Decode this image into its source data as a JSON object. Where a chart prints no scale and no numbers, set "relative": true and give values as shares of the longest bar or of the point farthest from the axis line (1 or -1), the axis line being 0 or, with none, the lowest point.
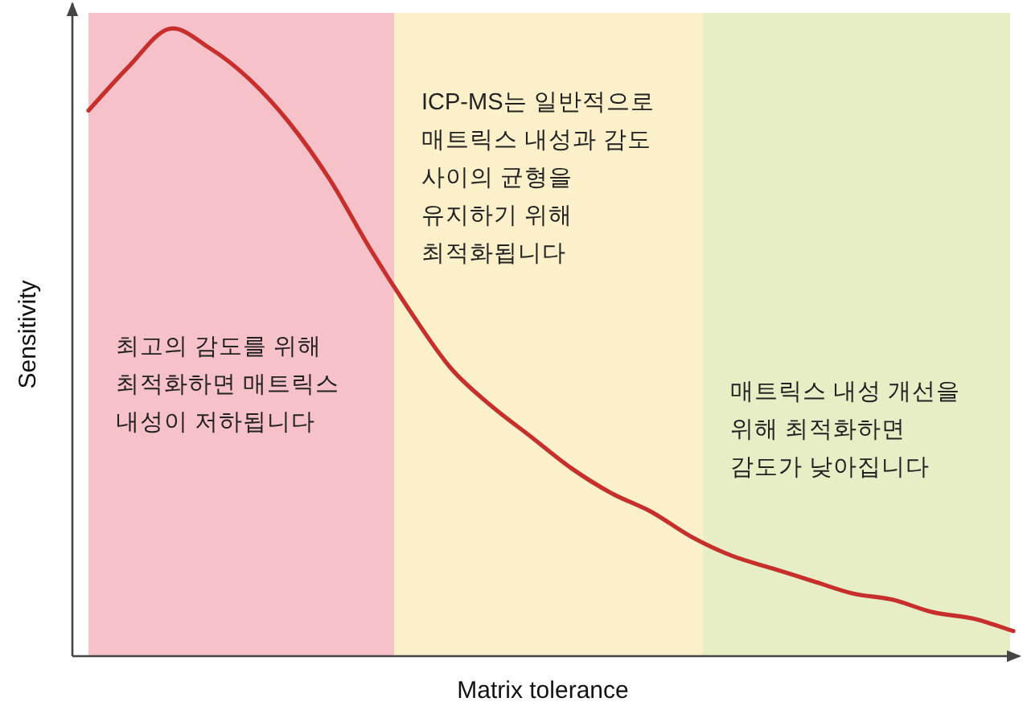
{
  "chart_data": {
    "type": "line",
    "relative": true,
    "xlabel": "Matrix tolerance",
    "ylabel": "Sensitivity",
    "categories": [
      null,
      null,
      null,
      null,
      null,
      null,
      null,
      null,
      null,
      null,
      null,
      null,
      null,
      null,
      null,
      null,
      null,
      null,
      null,
      null,
      null,
      null,
      null,
      null
    ],
    "series": [
      {
        "color": "#c62f2b",
        "values": [
          0.87,
          0.94,
          1,
          0.97,
          0.92,
          0.85,
          0.76,
          0.65,
          0.55,
          0.46,
          0.4,
          0.35,
          0.3,
          0.26,
          0.23,
          0.19,
          0.16,
          0.14,
          0.12,
          0.1,
          0.09,
          0.07,
          0.06,
          0.04
        ]
      }
    ],
    "annotations": [
      "최고의 감도를 위해\n최적화하면 매트릭스\n내성이 저하됩니다",
      "ICP-MS는 일반적으로\n매트릭스 내성과 감도\n사이의 균형을\n유지하기 위해\n최적화됩니다",
      "매트릭스 내성 개선을\n위해 최적화하면\n감도가 낮아집니다"
    ],
    "marker": "none",
    "line_style": "solid"
  }
}
